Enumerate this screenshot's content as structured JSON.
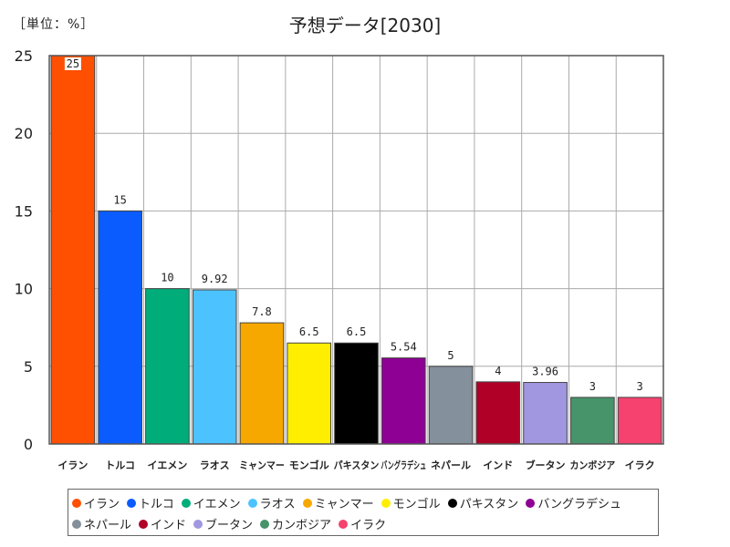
{
  "header": {
    "unit_label": "［単位：%］"
  },
  "chart_data": {
    "type": "bar",
    "title": "予想データ[2030]",
    "xlabel": "",
    "ylabel": "",
    "ylim": [
      0,
      25
    ],
    "yticks": [
      0,
      5,
      10,
      15,
      20,
      25
    ],
    "grid": true,
    "legend_position": "bottom",
    "categories": [
      "イラン",
      "トルコ",
      "イエメン",
      "ラオス",
      "ミャンマー",
      "モンゴル",
      "パキスタン",
      "バングラデシュ",
      "ネパール",
      "インド",
      "ブータン",
      "カンボジア",
      "イラク"
    ],
    "values": [
      25,
      15,
      10,
      9.92,
      7.8,
      6.5,
      6.5,
      5.54,
      5,
      4,
      3.96,
      3,
      3
    ],
    "value_labels": [
      "25",
      "15",
      "10",
      "9.92",
      "7.8",
      "6.5",
      "6.5",
      "5.54",
      "5",
      "4",
      "3.96",
      "3",
      "3"
    ],
    "colors": [
      "#ff4f00",
      "#0a5cff",
      "#00ad7a",
      "#4cc3ff",
      "#f7a800",
      "#ffee00",
      "#000000",
      "#8e0094",
      "#84909b",
      "#b00028",
      "#a097e0",
      "#47936a",
      "#f5426e"
    ]
  }
}
